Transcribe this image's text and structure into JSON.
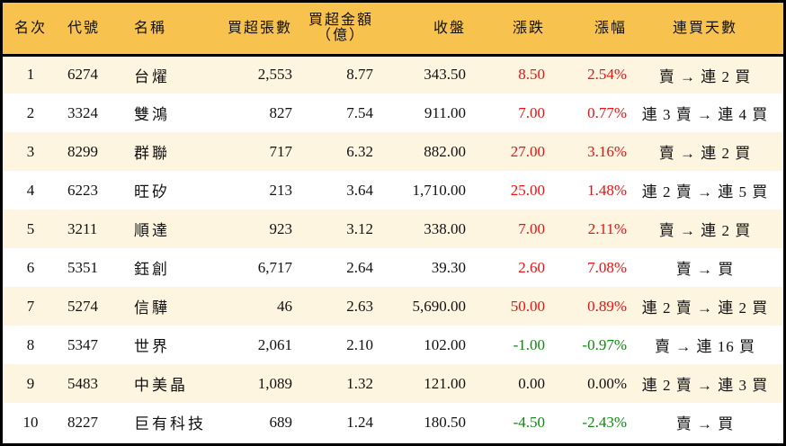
{
  "table": {
    "headers": {
      "rank": "名次",
      "code": "代號",
      "name": "名稱",
      "net_buy_lots": "買超張數",
      "net_buy_amount_line1": "買超金額",
      "net_buy_amount_line2": "（億）",
      "close": "收盤",
      "change": "漲跌",
      "change_pct": "漲幅",
      "streak": "連買天數"
    },
    "colors": {
      "header_bg": "#f8c24e",
      "row_odd_bg": "#fef5e1",
      "row_even_bg": "#ffffff",
      "up": "#ee1111",
      "down": "#118811"
    },
    "rows": [
      {
        "rank": "1",
        "code": "6274",
        "name": "台燿",
        "net_buy_lots": "2,553",
        "net_buy_amount": "8.77",
        "close": "343.50",
        "change": "8.50",
        "change_pct": "2.54%",
        "direction": "up",
        "streak": "賣 → 連 2 買"
      },
      {
        "rank": "2",
        "code": "3324",
        "name": "雙鴻",
        "net_buy_lots": "827",
        "net_buy_amount": "7.54",
        "close": "911.00",
        "change": "7.00",
        "change_pct": "0.77%",
        "direction": "up",
        "streak": "連 3 賣 → 連 4 買"
      },
      {
        "rank": "3",
        "code": "8299",
        "name": "群聯",
        "net_buy_lots": "717",
        "net_buy_amount": "6.32",
        "close": "882.00",
        "change": "27.00",
        "change_pct": "3.16%",
        "direction": "up",
        "streak": "賣 → 連 2 買"
      },
      {
        "rank": "4",
        "code": "6223",
        "name": "旺矽",
        "net_buy_lots": "213",
        "net_buy_amount": "3.64",
        "close": "1,710.00",
        "change": "25.00",
        "change_pct": "1.48%",
        "direction": "up",
        "streak": "連 2 賣 → 連 5 買"
      },
      {
        "rank": "5",
        "code": "3211",
        "name": "順達",
        "net_buy_lots": "923",
        "net_buy_amount": "3.12",
        "close": "338.00",
        "change": "7.00",
        "change_pct": "2.11%",
        "direction": "up",
        "streak": "賣 → 連 2 買"
      },
      {
        "rank": "6",
        "code": "5351",
        "name": "鈺創",
        "net_buy_lots": "6,717",
        "net_buy_amount": "2.64",
        "close": "39.30",
        "change": "2.60",
        "change_pct": "7.08%",
        "direction": "up",
        "streak": "賣 → 買"
      },
      {
        "rank": "7",
        "code": "5274",
        "name": "信驊",
        "net_buy_lots": "46",
        "net_buy_amount": "2.63",
        "close": "5,690.00",
        "change": "50.00",
        "change_pct": "0.89%",
        "direction": "up",
        "streak": "連 2 賣 → 連 2 買"
      },
      {
        "rank": "8",
        "code": "5347",
        "name": "世界",
        "net_buy_lots": "2,061",
        "net_buy_amount": "2.10",
        "close": "102.00",
        "change": "-1.00",
        "change_pct": "-0.97%",
        "direction": "down",
        "streak": "賣 → 連 16 買"
      },
      {
        "rank": "9",
        "code": "5483",
        "name": "中美晶",
        "net_buy_lots": "1,089",
        "net_buy_amount": "1.32",
        "close": "121.00",
        "change": "0.00",
        "change_pct": "0.00%",
        "direction": "flat",
        "streak": "連 2 賣 → 連 3 買"
      },
      {
        "rank": "10",
        "code": "8227",
        "name": "巨有科技",
        "net_buy_lots": "689",
        "net_buy_amount": "1.24",
        "close": "180.50",
        "change": "-4.50",
        "change_pct": "-2.43%",
        "direction": "down",
        "streak": "賣 → 買"
      }
    ]
  }
}
